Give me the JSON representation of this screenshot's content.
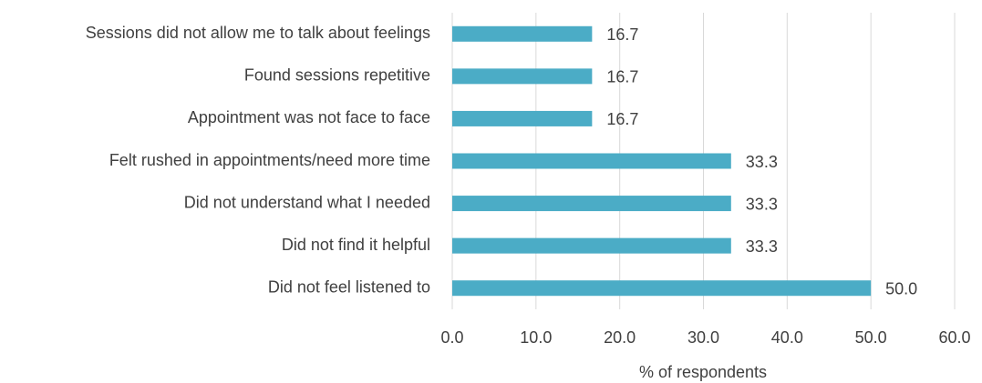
{
  "chart_data": {
    "type": "bar",
    "orientation": "horizontal",
    "x_axis_label": "% of respondents",
    "categories": [
      "Sessions did not allow me to talk about feelings",
      "Found sessions repetitive",
      "Appointment was not face to face",
      "Felt rushed in appointments/need more time",
      "Did not understand what I needed",
      "Did not find it helpful",
      "Did not feel listened to"
    ],
    "values": [
      16.7,
      16.7,
      16.7,
      33.3,
      33.3,
      33.3,
      50
    ],
    "value_labels": [
      "16.7",
      "16.7",
      "16.7",
      "33.3",
      "33.3",
      "33.3",
      "50.0"
    ],
    "color": "#4bacc6",
    "xlim": [
      0,
      60
    ],
    "xticks": [
      {
        "value": 0,
        "label": "0.0"
      },
      {
        "value": 10,
        "label": "10.0"
      },
      {
        "value": 20,
        "label": "20.0"
      },
      {
        "value": 30,
        "label": "30.0"
      },
      {
        "value": 40,
        "label": "40.0"
      },
      {
        "value": 50,
        "label": "50.0"
      },
      {
        "value": 60,
        "label": "60.0"
      }
    ],
    "grid": true
  }
}
